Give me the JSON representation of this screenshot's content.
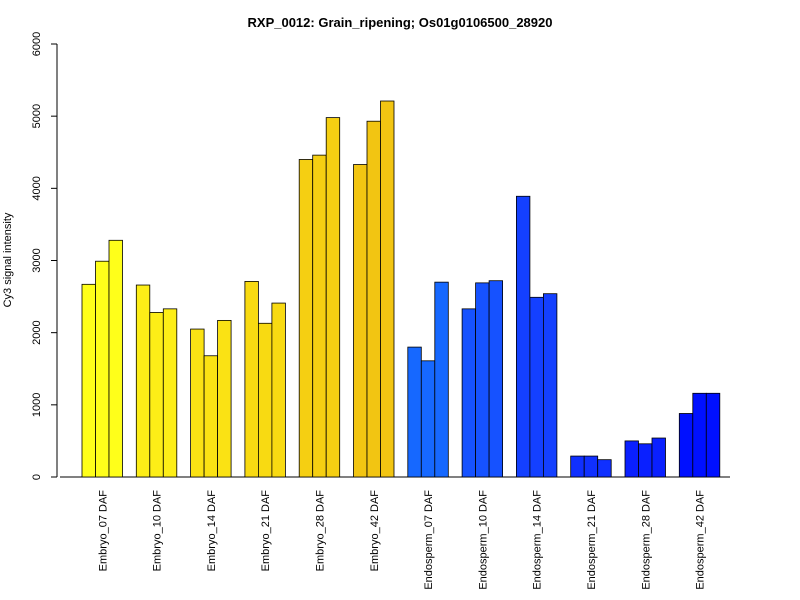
{
  "chart_data": {
    "type": "bar",
    "title": "RXP_0012: Grain_ripening; Os01g0106500_28920",
    "xlabel": "",
    "ylabel": "Cy3 signal intensity",
    "ylim": [
      0,
      6000
    ],
    "yticks": [
      0,
      1000,
      2000,
      3000,
      4000,
      5000,
      6000
    ],
    "grid": false,
    "legend": "none",
    "categories": [
      "Embryo_07 DAF",
      "Embryo_10 DAF",
      "Embryo_14 DAF",
      "Embryo_21 DAF",
      "Embryo_28 DAF",
      "Embryo_42 DAF",
      "Endosperm_07 DAF",
      "Endosperm_10 DAF",
      "Endosperm_14 DAF",
      "Endosperm_21 DAF",
      "Endosperm_28 DAF",
      "Endosperm_42 DAF"
    ],
    "group_colors": [
      "#ffff1a",
      "#fdee17",
      "#fae214",
      "#f8da12",
      "#f5cf12",
      "#f2c512",
      "#1668ff",
      "#1652ff",
      "#1440ff",
      "#1030ff",
      "#0a20ff",
      "#0010ff"
    ],
    "values": [
      [
        2670,
        2990,
        3280
      ],
      [
        2660,
        2280,
        2330
      ],
      [
        2050,
        1680,
        2170
      ],
      [
        2710,
        2130,
        2410
      ],
      [
        4400,
        4460,
        4980
      ],
      [
        4330,
        4930,
        5210
      ],
      [
        1800,
        1610,
        2700
      ],
      [
        2330,
        2690,
        2720
      ],
      [
        3890,
        2490,
        2540
      ],
      [
        290,
        290,
        240
      ],
      [
        500,
        460,
        540
      ],
      [
        880,
        1160,
        1160
      ]
    ]
  }
}
